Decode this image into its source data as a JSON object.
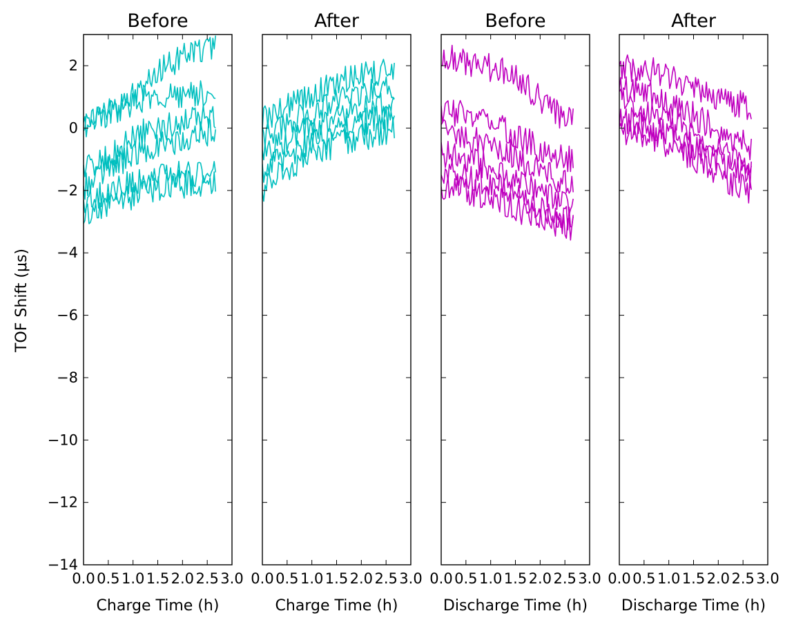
{
  "figure": {
    "ylabel": "TOF Shift (μs)"
  },
  "chart_data": [
    {
      "type": "line",
      "title": "Before",
      "xlabel": "Charge Time (h)",
      "ylabel": "TOF Shift (μs)",
      "xlim": [
        0.0,
        3.0
      ],
      "ylim": [
        -14,
        3
      ],
      "xticks": [
        "0.0",
        "0.5",
        "1.0",
        "1.5",
        "2.0",
        "2.5",
        "3.0"
      ],
      "yticks": [
        "2",
        "0",
        "−2",
        "−4",
        "−6",
        "−8",
        "−10",
        "−12",
        "−14"
      ],
      "grid": false,
      "color": "#00bfbf",
      "series": [
        {
          "x": [
            0.0,
            0.3,
            0.7,
            1.1,
            1.5,
            1.9,
            2.3,
            2.65
          ],
          "y": [
            0.2,
            0.4,
            0.7,
            1.1,
            1.8,
            2.2,
            2.5,
            2.6
          ]
        },
        {
          "x": [
            0.0,
            0.3,
            0.7,
            1.1,
            1.5,
            1.9,
            2.3,
            2.65
          ],
          "y": [
            0.1,
            0.3,
            0.6,
            0.9,
            1.0,
            1.1,
            1.1,
            1.1
          ]
        },
        {
          "x": [
            0.0,
            0.3,
            0.7,
            1.1,
            1.5,
            1.9,
            2.3,
            2.65
          ],
          "y": [
            -1.3,
            -1.1,
            -0.7,
            -0.2,
            0.0,
            0.1,
            0.3,
            0.3
          ]
        },
        {
          "x": [
            0.0,
            0.3,
            0.7,
            1.1,
            1.5,
            1.9,
            2.3,
            2.65
          ],
          "y": [
            -1.9,
            -1.5,
            -1.1,
            -0.8,
            -0.6,
            -0.4,
            -0.2,
            -0.1
          ]
        },
        {
          "x": [
            0.0,
            0.3,
            0.7,
            1.1,
            1.5,
            1.9,
            2.3,
            2.65
          ],
          "y": [
            -2.5,
            -2.2,
            -1.9,
            -1.7,
            -1.6,
            -1.5,
            -1.5,
            -1.4
          ]
        },
        {
          "x": [
            0.0,
            0.3,
            0.7,
            1.1,
            1.5,
            1.9,
            2.3,
            2.65
          ],
          "y": [
            -2.9,
            -2.6,
            -2.3,
            -2.1,
            -1.9,
            -1.8,
            -1.8,
            -1.8
          ]
        }
      ]
    },
    {
      "type": "line",
      "title": "After",
      "xlabel": "Charge Time (h)",
      "ylabel": "",
      "xlim": [
        0.0,
        3.0
      ],
      "ylim": [
        -14,
        3
      ],
      "xticks": [
        "0.0",
        "0.5",
        "1.0",
        "1.5",
        "2.0",
        "2.5",
        "3.0"
      ],
      "yticks": [],
      "grid": false,
      "color": "#00bfbf",
      "series": [
        {
          "x": [
            0.0,
            0.3,
            0.7,
            1.1,
            1.5,
            1.9,
            2.3,
            2.65
          ],
          "y": [
            0.2,
            0.6,
            0.9,
            1.2,
            1.5,
            1.7,
            1.8,
            1.8
          ]
        },
        {
          "x": [
            0.0,
            0.3,
            0.7,
            1.1,
            1.5,
            1.9,
            2.3,
            2.65
          ],
          "y": [
            -0.3,
            0.0,
            0.3,
            0.6,
            0.9,
            1.1,
            1.2,
            1.3
          ]
        },
        {
          "x": [
            0.0,
            0.3,
            0.7,
            1.1,
            1.5,
            1.9,
            2.3,
            2.65
          ],
          "y": [
            -0.8,
            -0.5,
            -0.2,
            0.1,
            0.4,
            0.6,
            0.7,
            0.7
          ]
        },
        {
          "x": [
            0.0,
            0.3,
            0.7,
            1.1,
            1.5,
            1.9,
            2.3,
            2.65
          ],
          "y": [
            -1.3,
            -1.0,
            -0.7,
            -0.4,
            -0.1,
            0.1,
            0.3,
            0.4
          ]
        },
        {
          "x": [
            0.0,
            0.3,
            0.7,
            1.1,
            1.5,
            1.9,
            2.3,
            2.65
          ],
          "y": [
            -1.9,
            -1.5,
            -1.1,
            -0.8,
            -0.5,
            -0.3,
            -0.2,
            -0.1
          ]
        }
      ]
    },
    {
      "type": "line",
      "title": "Before",
      "xlabel": "Discharge Time (h)",
      "ylabel": "",
      "xlim": [
        0.0,
        3.0
      ],
      "ylim": [
        -14,
        3
      ],
      "xticks": [
        "0.0",
        "0.5",
        "1.0",
        "1.5",
        "2.0",
        "2.5",
        "3.0"
      ],
      "yticks": [],
      "grid": false,
      "color": "#bf00bf",
      "series": [
        {
          "x": [
            0.0,
            0.3,
            0.7,
            1.1,
            1.5,
            1.9,
            2.3,
            2.65
          ],
          "y": [
            2.4,
            2.2,
            2.0,
            1.9,
            1.6,
            1.1,
            0.5,
            0.2
          ]
        },
        {
          "x": [
            0.0,
            0.3,
            0.7,
            1.1,
            1.5,
            1.9,
            2.3,
            2.65
          ],
          "y": [
            0.6,
            0.5,
            0.3,
            0.1,
            -0.2,
            -0.6,
            -0.9,
            -1.0
          ]
        },
        {
          "x": [
            0.0,
            0.3,
            0.7,
            1.1,
            1.5,
            1.9,
            2.3,
            2.65
          ],
          "y": [
            -0.1,
            -0.2,
            -0.4,
            -0.6,
            -0.9,
            -1.3,
            -1.6,
            -1.7
          ]
        },
        {
          "x": [
            0.0,
            0.3,
            0.7,
            1.1,
            1.5,
            1.9,
            2.3,
            2.65
          ],
          "y": [
            -0.8,
            -0.9,
            -1.1,
            -1.3,
            -1.6,
            -2.0,
            -2.3,
            -2.4
          ]
        },
        {
          "x": [
            0.0,
            0.3,
            0.7,
            1.1,
            1.5,
            1.9,
            2.3,
            2.65
          ],
          "y": [
            -1.4,
            -1.5,
            -1.6,
            -1.8,
            -2.1,
            -2.5,
            -2.8,
            -2.9
          ]
        },
        {
          "x": [
            0.0,
            0.3,
            0.7,
            1.1,
            1.5,
            1.9,
            2.3,
            2.65
          ],
          "y": [
            -1.9,
            -2.0,
            -2.1,
            -2.3,
            -2.6,
            -2.9,
            -3.1,
            -3.2
          ]
        }
      ]
    },
    {
      "type": "line",
      "title": "After",
      "xlabel": "Discharge Time (h)",
      "ylabel": "",
      "xlim": [
        0.0,
        3.0
      ],
      "ylim": [
        -14,
        3
      ],
      "xticks": [
        "0.0",
        "0.5",
        "1.0",
        "1.5",
        "2.0",
        "2.5",
        "3.0"
      ],
      "yticks": [],
      "grid": false,
      "color": "#bf00bf",
      "series": [
        {
          "x": [
            0.0,
            0.3,
            0.7,
            1.1,
            1.5,
            1.9,
            2.3,
            2.65
          ],
          "y": [
            1.9,
            1.9,
            1.8,
            1.6,
            1.3,
            1.0,
            0.8,
            0.7
          ]
        },
        {
          "x": [
            0.0,
            0.3,
            0.7,
            1.1,
            1.5,
            1.9,
            2.3,
            2.65
          ],
          "y": [
            1.3,
            1.2,
            1.0,
            0.7,
            0.4,
            0.0,
            -0.4,
            -0.6
          ]
        },
        {
          "x": [
            0.0,
            0.3,
            0.7,
            1.1,
            1.5,
            1.9,
            2.3,
            2.65
          ],
          "y": [
            0.8,
            0.7,
            0.5,
            0.2,
            -0.1,
            -0.5,
            -0.9,
            -1.1
          ]
        },
        {
          "x": [
            0.0,
            0.3,
            0.7,
            1.1,
            1.5,
            1.9,
            2.3,
            2.65
          ],
          "y": [
            0.3,
            0.2,
            0.0,
            -0.3,
            -0.6,
            -1.0,
            -1.3,
            -1.5
          ]
        },
        {
          "x": [
            0.0,
            0.3,
            0.7,
            1.1,
            1.5,
            1.9,
            2.3,
            2.65
          ],
          "y": [
            -0.1,
            -0.2,
            -0.4,
            -0.7,
            -1.0,
            -1.4,
            -1.8,
            -2.0
          ]
        }
      ]
    }
  ]
}
